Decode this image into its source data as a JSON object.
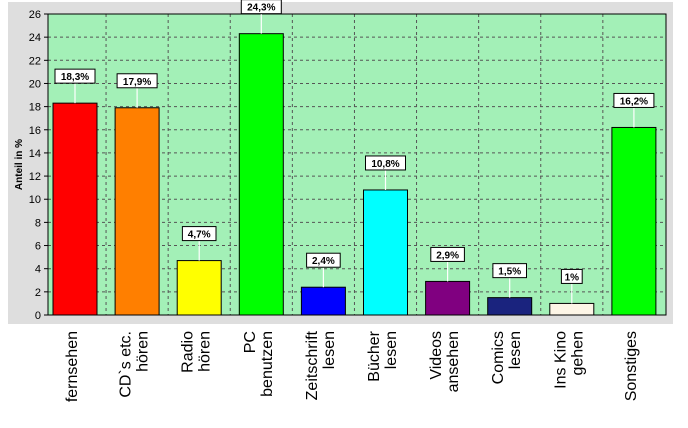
{
  "colors": {
    "plot_background": "#a3f0b7",
    "frame_background": "#dedede",
    "gridline": "#555555"
  },
  "chart_data": {
    "type": "bar",
    "title": "",
    "xlabel": "",
    "ylabel": "Anteil in %",
    "ylim": [
      0,
      26
    ],
    "yticks": [
      0,
      2,
      4,
      6,
      8,
      10,
      12,
      14,
      16,
      18,
      20,
      22,
      24,
      26
    ],
    "grid": true,
    "categories": [
      [
        "fernsehen"
      ],
      [
        "CD`s etc.",
        "hören"
      ],
      [
        "Radio",
        "hören"
      ],
      [
        "PC",
        "benutzen"
      ],
      [
        "Zeitschrift",
        "lesen"
      ],
      [
        "Bücher",
        "lesen"
      ],
      [
        "Videos",
        "ansehen"
      ],
      [
        "Comics",
        "lesen"
      ],
      [
        "Ins Kino",
        "gehen"
      ],
      [
        "Sonstiges"
      ]
    ],
    "values": [
      18.3,
      17.9,
      4.7,
      24.3,
      2.4,
      10.8,
      2.9,
      1.5,
      1,
      16.2
    ],
    "data_labels": [
      "18,3%",
      "17,9%",
      "4,7%",
      "24,3%",
      "2,4%",
      "10,8%",
      "2,9%",
      "1,5%",
      "1%",
      "16,2%"
    ],
    "bar_colors": [
      "#ff0000",
      "#ff7f00",
      "#ffff00",
      "#00ff00",
      "#0000ff",
      "#00ffff",
      "#800080",
      "#1a237e",
      "#fdf5e6",
      "#00ff00"
    ]
  }
}
